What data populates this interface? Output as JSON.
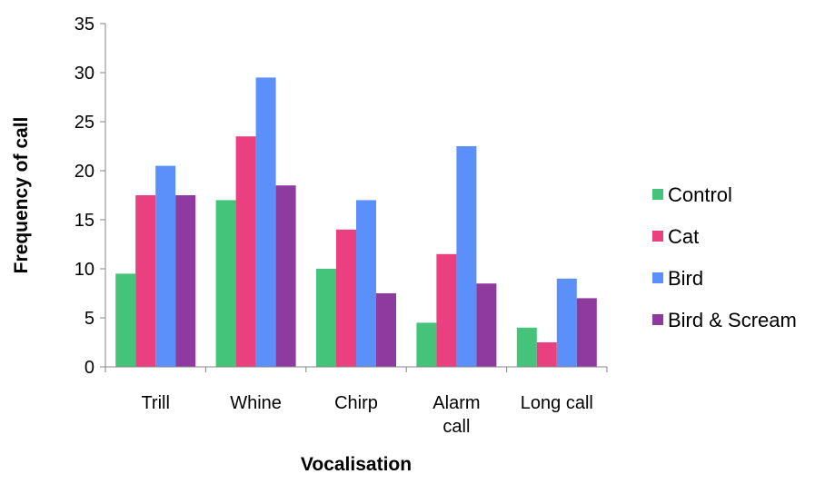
{
  "chart_data": {
    "type": "bar",
    "title": "",
    "xlabel": "Vocalisation",
    "ylabel": "Frequency of call",
    "ylim": [
      0,
      35
    ],
    "yticks": [
      0,
      5,
      10,
      15,
      20,
      25,
      30,
      35
    ],
    "grid": false,
    "legend_position": "right",
    "categories": [
      [
        "Trill"
      ],
      [
        "Whine"
      ],
      [
        "Chirp"
      ],
      [
        "Alarm",
        "call"
      ],
      [
        "Long call"
      ]
    ],
    "series": [
      {
        "name": "Control",
        "color": "#44c47a",
        "values": [
          9.5,
          17,
          10,
          4.5,
          4
        ]
      },
      {
        "name": "Cat",
        "color": "#ea407f",
        "values": [
          17.5,
          23.5,
          14,
          11.5,
          2.5
        ]
      },
      {
        "name": "Bird",
        "color": "#5b8ff9",
        "values": [
          20.5,
          29.5,
          17,
          22.5,
          9
        ]
      },
      {
        "name": "Bird & Scream",
        "color": "#8e3a9e",
        "values": [
          17.5,
          18.5,
          7.5,
          8.5,
          7
        ]
      }
    ]
  }
}
